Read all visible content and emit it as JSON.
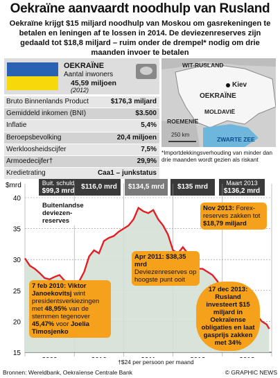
{
  "title": "Oekraïne aanvaardt noodhulp van Rusland",
  "subtitle": "Oekraïne krijgt $15 miljard noodhulp van Moskou om gasrekeningen te betalen en leningen af te lossen in 2014. De deviezenreserves zijn gedaald tot $18,8 miljard – ruim onder de drempel* nodig om drie maanden invoer te betalen",
  "country": {
    "name": "OEKRAÏNE",
    "pop_label": "Aantal inwoners",
    "pop_value": "45,59 miljoen",
    "pop_year": "(2012)",
    "flag_colors": [
      "#2a62b3",
      "#f5d90a"
    ]
  },
  "stats": [
    {
      "label": "Bruto Binnenlands Product",
      "value": "$176,3 miljard"
    },
    {
      "label": "Gemiddeld inkomen (BNI)",
      "value": "$3.500"
    },
    {
      "label": "Inflatie",
      "value": "5,4%"
    },
    {
      "label": "Beroepsbevolking",
      "value": "20,4 miljoen"
    },
    {
      "label": "Werkloosheidscijfer",
      "value": "7,5%"
    },
    {
      "label": "Armoedecijfer†",
      "value": "29,9%"
    },
    {
      "label": "Kredietrating",
      "value": "Caa1 – junkstatus"
    }
  ],
  "map": {
    "labels": [
      "WIT-RUSLAND",
      "Kiev",
      "OEKRAÏNE",
      "MOLDAVIË",
      "ROEMENIË",
      "ZWARTE ZEE"
    ],
    "scale": "250 km"
  },
  "note": "*Importdekkingsverhouding van minder dan drie maanden wordt gezien als riskant",
  "debt_bars": [
    {
      "label": "Buit. schuld",
      "value": "$99,3 mrd"
    },
    {
      "label": "",
      "value": "$116,0 mrd"
    },
    {
      "label": "",
      "value": "$134,5 mrd"
    },
    {
      "label": "",
      "value": "$135 mrd"
    },
    {
      "label": "Maart 2013",
      "value": "$136,2 mrd"
    }
  ],
  "callouts": {
    "reserves": "Buitenlandse deviezen-reserves",
    "nov2013_a": "Nov 2013:",
    "nov2013_b": " Forex-reserves zakken tot ",
    "nov2013_c": "$18,79 miljard",
    "apr2011_a": "Apr 2011: $38,35 mrd",
    "apr2011_b": "Deviezenreserves op hoogste punt ooit",
    "feb2010_a": "7 feb 2010: Viktor Janoekovitsj",
    "feb2010_b": " wint presidentsverkiezingen met ",
    "feb2010_c": "48,95%",
    "feb2010_d": " van de stemmen tegenover ",
    "feb2010_e": "45,47%",
    "feb2010_f": " voor ",
    "feb2010_g": "Joelia Timosjenko",
    "dec2013": "17 dec 2013: Rusland investeert $15 miljard in Oekraïense obligaties en laat gasprijs zakken met 34%"
  },
  "footnote": "†$24 per persoon per maand",
  "source": "Bronnen: Wereldbank, Oekraïense Centrale Bank",
  "copyright": "© GRAPHIC NEWS",
  "chart_data": {
    "type": "area",
    "ylabel": "$mrd",
    "ylim": [
      15,
      40
    ],
    "yticks": [
      15,
      20,
      25,
      30,
      35,
      40
    ],
    "x_categories": [
      "2009",
      "2010",
      "2011",
      "2012",
      "2013"
    ],
    "series": [
      {
        "name": "Buitenlandse deviezenreserves",
        "x": [
          2009.0,
          2009.1,
          2009.2,
          2009.3,
          2009.4,
          2009.5,
          2009.6,
          2009.7,
          2009.8,
          2009.9,
          2010.0,
          2010.1,
          2010.2,
          2010.3,
          2010.4,
          2010.5,
          2010.6,
          2010.7,
          2010.8,
          2010.9,
          2011.0,
          2011.1,
          2011.2,
          2011.3,
          2011.4,
          2011.5,
          2011.6,
          2011.7,
          2011.8,
          2011.9,
          2012.0,
          2012.1,
          2012.2,
          2012.3,
          2012.4,
          2012.5,
          2012.6,
          2012.7,
          2012.8,
          2012.9,
          2013.0,
          2013.1,
          2013.2,
          2013.3,
          2013.4,
          2013.5,
          2013.6,
          2013.7,
          2013.8,
          2013.9,
          2013.95
        ],
        "y": [
          30.2,
          29.0,
          28.5,
          27.8,
          27.0,
          26.8,
          27.2,
          27.5,
          26.6,
          26.3,
          25.5,
          26.5,
          28.0,
          30.5,
          31.5,
          31.0,
          33.0,
          33.5,
          33.8,
          34.5,
          35.0,
          35.5,
          36.5,
          38.35,
          37.8,
          37.5,
          38.0,
          36.5,
          35.5,
          34.0,
          31.5,
          31.0,
          32.0,
          31.0,
          30.0,
          28.5,
          28.5,
          28.0,
          27.5,
          26.5,
          24.5,
          25.5,
          25.0,
          24.0,
          23.0,
          24.5,
          23.5,
          21.0,
          20.0,
          19.5,
          18.79
        ]
      }
    ],
    "grid": true
  }
}
